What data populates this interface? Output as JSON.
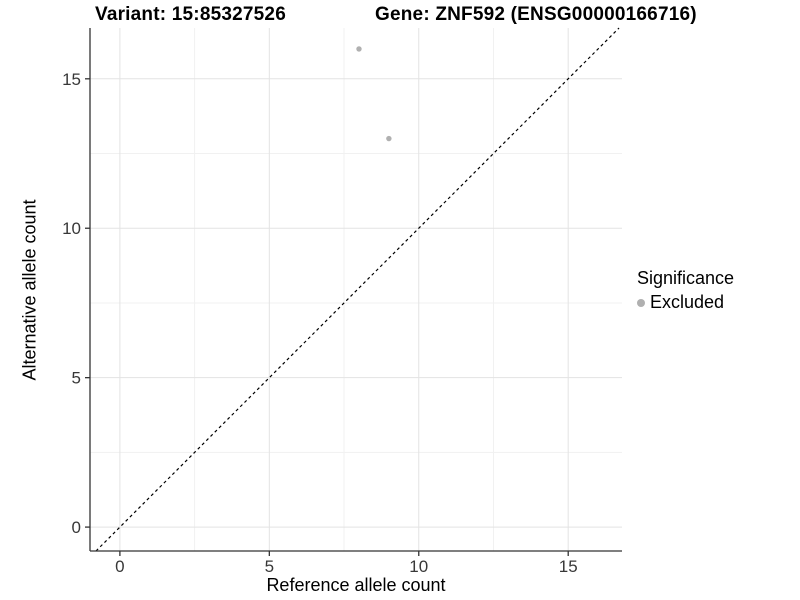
{
  "chart_data": {
    "type": "scatter",
    "title_left": "Variant: 15:85327526",
    "title_right": "Gene: ZNF592 (ENSG00000166716)",
    "xlabel": "Reference allele count",
    "ylabel": "Alternative allele count",
    "x_ticks": [
      0,
      5,
      10,
      15
    ],
    "y_ticks": [
      0,
      5,
      10,
      15
    ],
    "x_minor_ticks": [
      2.5,
      7.5,
      12.5
    ],
    "y_minor_ticks": [
      2.5,
      7.5,
      12.5
    ],
    "xlim": [
      -1,
      16.8
    ],
    "ylim": [
      -0.8,
      16.7
    ],
    "grid": "major+minor",
    "legend_position": "right",
    "legend_title": "Significance",
    "series": [
      {
        "name": "Excluded",
        "color": "#b0b0b0",
        "points": [
          [
            8,
            16
          ],
          [
            9,
            13
          ]
        ]
      }
    ],
    "reference_line": {
      "kind": "identity y=x",
      "style": "dashed",
      "color": "#000000"
    },
    "colors": {
      "grid_major": "#e3e3e3",
      "grid_minor": "#f1f1f1",
      "axis": "#333333",
      "tick_text": "#383838"
    }
  }
}
